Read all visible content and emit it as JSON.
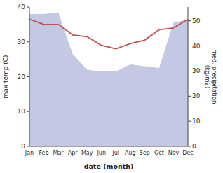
{
  "chart_data": {
    "type": "line",
    "categories": [
      "Jan",
      "Feb",
      "Mar",
      "Apr",
      "May",
      "Jun",
      "Jul",
      "Aug",
      "Sep",
      "Oct",
      "Nov",
      "Dec"
    ],
    "series": [
      {
        "type": "area",
        "color": "#b8bfde",
        "values": [
          38.0,
          38.0,
          38.5,
          26.5,
          22.0,
          21.5,
          21.5,
          23.5,
          23.0,
          22.5,
          35.5,
          36.5
        ]
      },
      {
        "type": "line",
        "color": "#c0504d",
        "values": [
          36.5,
          35.0,
          35.0,
          32.0,
          31.5,
          29.0,
          28.0,
          29.5,
          30.5,
          33.5,
          34.0,
          36.5
        ]
      }
    ],
    "xlabel": "date (month)",
    "ylabel": "max temp (C)",
    "y2label": "med. precipitation\n(kg/m2)",
    "ylim": [
      0,
      40
    ],
    "yticks": [
      0,
      10,
      20,
      30,
      40
    ],
    "y2lim": [
      0,
      55.5
    ],
    "y2ticks": [
      0,
      10,
      20,
      30,
      40,
      50
    ],
    "grid": false
  }
}
